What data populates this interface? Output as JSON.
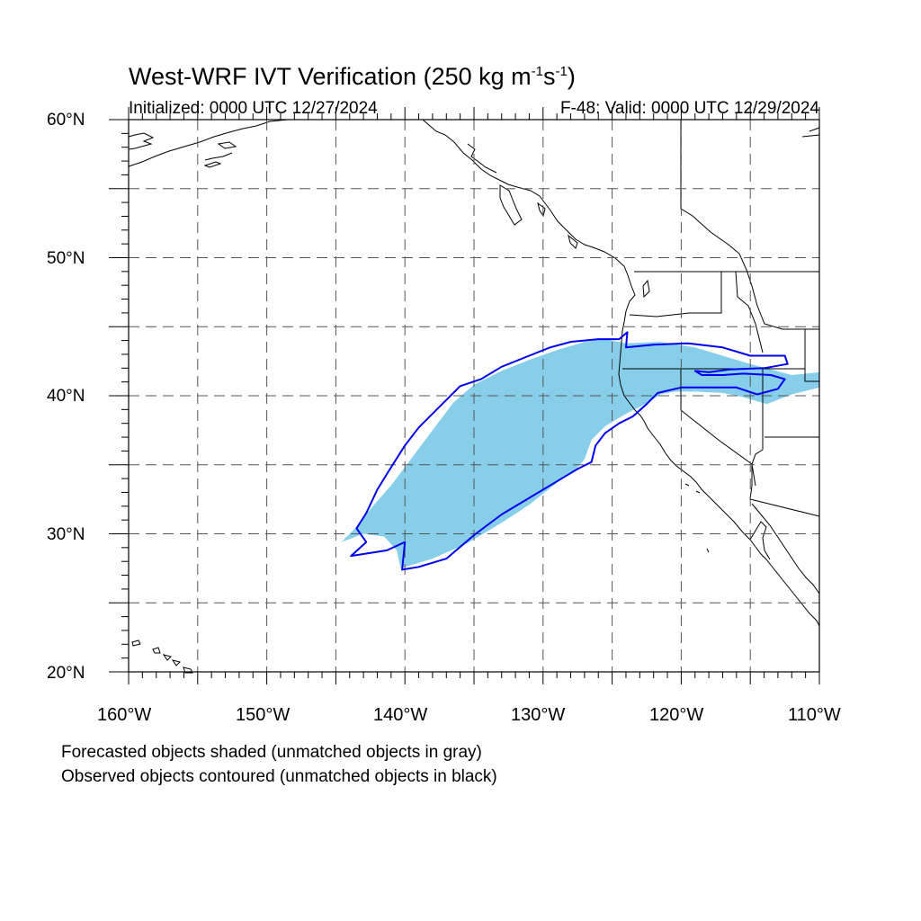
{
  "title": {
    "prefix": "West-WRF IVT Verification (250 kg m",
    "sup1": "-1",
    "mid": "s",
    "sup2": "-1",
    "suffix": ")"
  },
  "subtitle_left": "Initialized: 0000 UTC 12/27/2024",
  "subtitle_right": "F-48: Valid: 0000 UTC 12/29/2024",
  "lat_labels": [
    "60°N",
    "50°N",
    "40°N",
    "30°N",
    "20°N"
  ],
  "lon_labels": [
    "160°W",
    "150°W",
    "140°W",
    "130°W",
    "120°W",
    "110°W"
  ],
  "notes": [
    "Forecasted objects shaded (unmatched objects in gray)",
    "Observed objects contoured (unmatched objects in black)"
  ],
  "colors": {
    "forecast_fill": "#87ceeb",
    "observed_contour": "#0000ee",
    "coastline": "#000000",
    "grid": "#555555"
  },
  "chart_data": {
    "type": "map",
    "projection": "cylindrical-equidistant",
    "xlim": [
      -160,
      -110
    ],
    "ylim": [
      20,
      60
    ],
    "grid": true,
    "forecast_object": {
      "matched": true,
      "polygon": [
        [
          -144.5,
          29.5
        ],
        [
          -143.5,
          30.5
        ],
        [
          -142.5,
          31.8
        ],
        [
          -141,
          33.5
        ],
        [
          -139.5,
          35.5
        ],
        [
          -138,
          37.5
        ],
        [
          -136.5,
          39.5
        ],
        [
          -135,
          40.8
        ],
        [
          -133,
          41.8
        ],
        [
          -131,
          42.6
        ],
        [
          -129,
          43.3
        ],
        [
          -127,
          43.9
        ],
        [
          -125.5,
          44.1
        ],
        [
          -124,
          43.8
        ],
        [
          -121.5,
          43.9
        ],
        [
          -119,
          43.5
        ],
        [
          -117,
          42.9
        ],
        [
          -115,
          42.3
        ],
        [
          -113.5,
          41.9
        ],
        [
          -112,
          41.5
        ],
        [
          -110,
          41.7
        ],
        [
          -110,
          40.6
        ],
        [
          -112,
          40.1
        ],
        [
          -113.8,
          39.4
        ],
        [
          -115.5,
          39.9
        ],
        [
          -117,
          40.2
        ],
        [
          -119,
          40.3
        ],
        [
          -120.5,
          40.3
        ],
        [
          -121.5,
          40.1
        ],
        [
          -122.6,
          39.4
        ],
        [
          -124,
          38.7
        ],
        [
          -125.5,
          37.8
        ],
        [
          -126.5,
          36.8
        ],
        [
          -127,
          35.4
        ],
        [
          -127.5,
          34.8
        ],
        [
          -129,
          33.7
        ],
        [
          -131,
          32.1
        ],
        [
          -133,
          30.8
        ],
        [
          -135.5,
          29.3
        ],
        [
          -138,
          28.2
        ],
        [
          -140.3,
          27.5
        ],
        [
          -140.6,
          28.8
        ],
        [
          -141.5,
          29.8
        ],
        [
          -143,
          30
        ],
        [
          -144.6,
          29.4
        ]
      ]
    },
    "observed_object": {
      "matched": true,
      "polygon": [
        [
          -143.9,
          28.4
        ],
        [
          -142.8,
          29.4
        ],
        [
          -143.5,
          30.4
        ],
        [
          -142.8,
          31.5
        ],
        [
          -142,
          33.2
        ],
        [
          -141.2,
          34.5
        ],
        [
          -140,
          36.4
        ],
        [
          -139,
          37.7
        ],
        [
          -137.5,
          39.2
        ],
        [
          -136,
          40.7
        ],
        [
          -134.5,
          41.2
        ],
        [
          -133,
          42.1
        ],
        [
          -131,
          42.9
        ],
        [
          -129.5,
          43.5
        ],
        [
          -128,
          43.9
        ],
        [
          -126,
          44.1
        ],
        [
          -124.5,
          44.1
        ],
        [
          -123.9,
          44.6
        ],
        [
          -124,
          43.5
        ],
        [
          -122,
          43.7
        ],
        [
          -119.5,
          43.8
        ],
        [
          -117,
          43.5
        ],
        [
          -115,
          42.9
        ],
        [
          -112.5,
          42.9
        ],
        [
          -112.3,
          42.3
        ],
        [
          -114,
          42
        ],
        [
          -116.5,
          41.9
        ],
        [
          -118,
          41.7
        ],
        [
          -119,
          41.8
        ],
        [
          -118.5,
          41.5
        ],
        [
          -117,
          41.5
        ],
        [
          -115.5,
          41.6
        ],
        [
          -113.5,
          41.5
        ],
        [
          -112.5,
          41.2
        ],
        [
          -113,
          40.5
        ],
        [
          -114.5,
          40.1
        ],
        [
          -116,
          40.6
        ],
        [
          -118,
          40.6
        ],
        [
          -120,
          40.6
        ],
        [
          -121.7,
          40.2
        ],
        [
          -122.5,
          39.4
        ],
        [
          -123.5,
          38.5
        ],
        [
          -124.5,
          38
        ],
        [
          -125.5,
          37.3
        ],
        [
          -126.2,
          36.4
        ],
        [
          -126.5,
          35.2
        ],
        [
          -127.5,
          34.7
        ],
        [
          -129,
          33.8
        ],
        [
          -131,
          32.6
        ],
        [
          -133,
          31.4
        ],
        [
          -135,
          29.9
        ],
        [
          -137,
          28.2
        ],
        [
          -139,
          27.6
        ],
        [
          -140.2,
          27.4
        ],
        [
          -140,
          29.4
        ],
        [
          -141.3,
          28.8
        ],
        [
          -143.9,
          28.4
        ]
      ]
    }
  }
}
